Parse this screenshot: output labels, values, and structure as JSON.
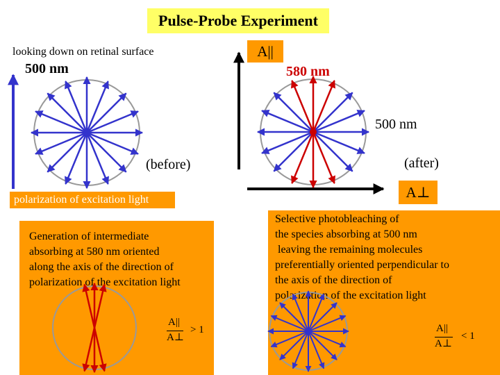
{
  "title": "Pulse-Probe Experiment",
  "subtitle": "looking down on retinal surface",
  "wavelength_left": "500 nm",
  "label_a_parallel": "A||",
  "wavelength_580": "580 nm",
  "wavelength_right": "500 nm",
  "label_before": "(before)",
  "label_after": "(after)",
  "label_a_perp": "A⊥",
  "polarization_label": "polarization of excitation light",
  "left_panel_text": "Generation of intermediate\nabsorbing at 580 nm oriented\nalong the axis of the direction of\npolarization of the excitation light",
  "right_panel_text": "Selective photobleaching of\nthe species absorbing at 500 nm\n leaving the remaining molecules\npreferentially oriented perpendicular to\nthe axis of the direction of\npolarization of the excitation light",
  "left_ratio": {
    "numerator": "A||",
    "denominator": "A⊥",
    "relation": "> 1"
  },
  "right_ratio": {
    "numerator": "A||",
    "denominator": "A⊥",
    "relation": "< 1"
  },
  "colors": {
    "title_bg": "#ffff66",
    "accent_orange": "#ff9900",
    "vector_blue": "#3333cc",
    "vector_red": "#cc0000",
    "circle_gray": "#999999"
  }
}
